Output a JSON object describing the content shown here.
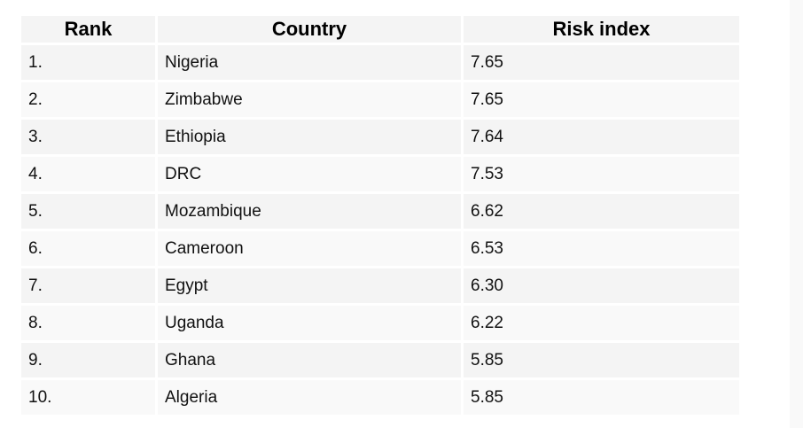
{
  "table": {
    "headers": [
      "Rank",
      "Country",
      "Risk index"
    ],
    "rows": [
      [
        "1.",
        "Nigeria",
        "7.65"
      ],
      [
        "2.",
        "Zimbabwe",
        "7.65"
      ],
      [
        "3.",
        "Ethiopia",
        "7.64"
      ],
      [
        "4.",
        "DRC",
        "7.53"
      ],
      [
        "5.",
        "Mozambique",
        "6.62"
      ],
      [
        "6.",
        "Cameroon",
        "6.53"
      ],
      [
        "7.",
        "Egypt",
        "6.30"
      ],
      [
        "8.",
        "Uganda",
        "6.22"
      ],
      [
        "9.",
        "Ghana",
        "5.85"
      ],
      [
        "10.",
        "Algeria",
        "5.85"
      ]
    ]
  }
}
